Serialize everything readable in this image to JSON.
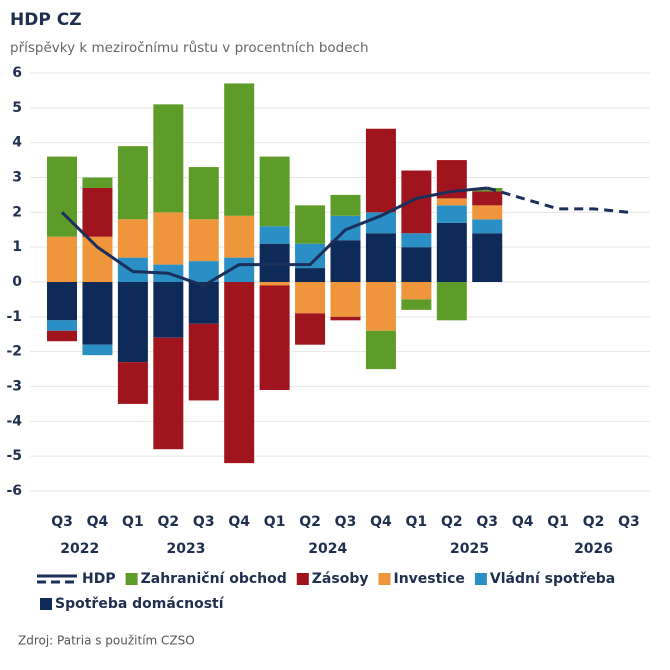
{
  "chart_data": {
    "type": "stacked_bar_line",
    "title": "HDP CZ",
    "subtitle": "příspěvky k meziročnímu růstu v procentních bodech",
    "source": "Zdroj: Patria s použitím CZSO",
    "groups": [
      {
        "label": "2022",
        "quarters": [
          "Q3",
          "Q4"
        ]
      },
      {
        "label": "2023",
        "quarters": [
          "Q1",
          "Q2",
          "Q3",
          "Q4"
        ]
      },
      {
        "label": "2024",
        "quarters": [
          "Q1",
          "Q2",
          "Q3",
          "Q4"
        ]
      },
      {
        "label": "2025",
        "quarters": [
          "Q1",
          "Q2",
          "Q3",
          "Q4"
        ]
      },
      {
        "label": "2026",
        "quarters": [
          "Q1",
          "Q2",
          "Q3"
        ]
      }
    ],
    "line": {
      "name": "HDP",
      "color": "#1b2f5a",
      "values": [
        2.0,
        1.0,
        0.3,
        0.25,
        -0.1,
        0.5,
        0.5,
        0.5,
        1.5,
        1.9,
        2.4,
        2.6,
        2.7,
        null,
        null,
        null,
        null
      ],
      "forecast": [
        null,
        null,
        null,
        null,
        null,
        null,
        null,
        null,
        null,
        null,
        null,
        null,
        null,
        2.4,
        2.1,
        2.1,
        2.0
      ]
    },
    "series": [
      {
        "name": "Zahraniční obchod",
        "color": "#5e9c2a",
        "values": [
          2.3,
          0.3,
          2.1,
          3.1,
          1.5,
          3.8,
          2.0,
          1.1,
          0.6,
          -1.1,
          -0.3,
          -1.1,
          0.1,
          null,
          null,
          null,
          null
        ]
      },
      {
        "name": "Zásoby",
        "color": "#a0141d",
        "values": [
          -0.3,
          1.4,
          -1.2,
          -3.2,
          -2.2,
          -5.2,
          -3.0,
          -0.9,
          -0.1,
          2.4,
          1.8,
          1.1,
          0.4,
          null,
          null,
          null,
          null
        ]
      },
      {
        "name": "Investice",
        "color": "#ef953c",
        "values": [
          1.3,
          1.3,
          1.1,
          1.5,
          1.2,
          1.2,
          -0.1,
          -0.9,
          -1.0,
          -1.4,
          -0.5,
          0.2,
          0.4,
          null,
          null,
          null,
          null
        ]
      },
      {
        "name": "Vládní spotřeba",
        "color": "#2a8fc4",
        "values": [
          -0.3,
          -0.3,
          0.7,
          0.5,
          0.6,
          0.7,
          0.5,
          0.7,
          0.7,
          0.6,
          0.4,
          0.5,
          0.4,
          null,
          null,
          null,
          null
        ]
      },
      {
        "name": "Spotřeba domácností",
        "color": "#0e2a58",
        "values": [
          -1.1,
          -1.8,
          -2.3,
          -1.6,
          -1.2,
          0,
          1.1,
          0.4,
          1.2,
          1.4,
          1.0,
          1.7,
          1.4,
          null,
          null,
          null,
          null
        ]
      }
    ],
    "ylim": [
      -6,
      6
    ],
    "yticks": [
      -6,
      -5,
      -4,
      -3,
      -2,
      -1,
      0,
      1,
      2,
      3,
      4,
      5,
      6
    ],
    "grid": true
  }
}
